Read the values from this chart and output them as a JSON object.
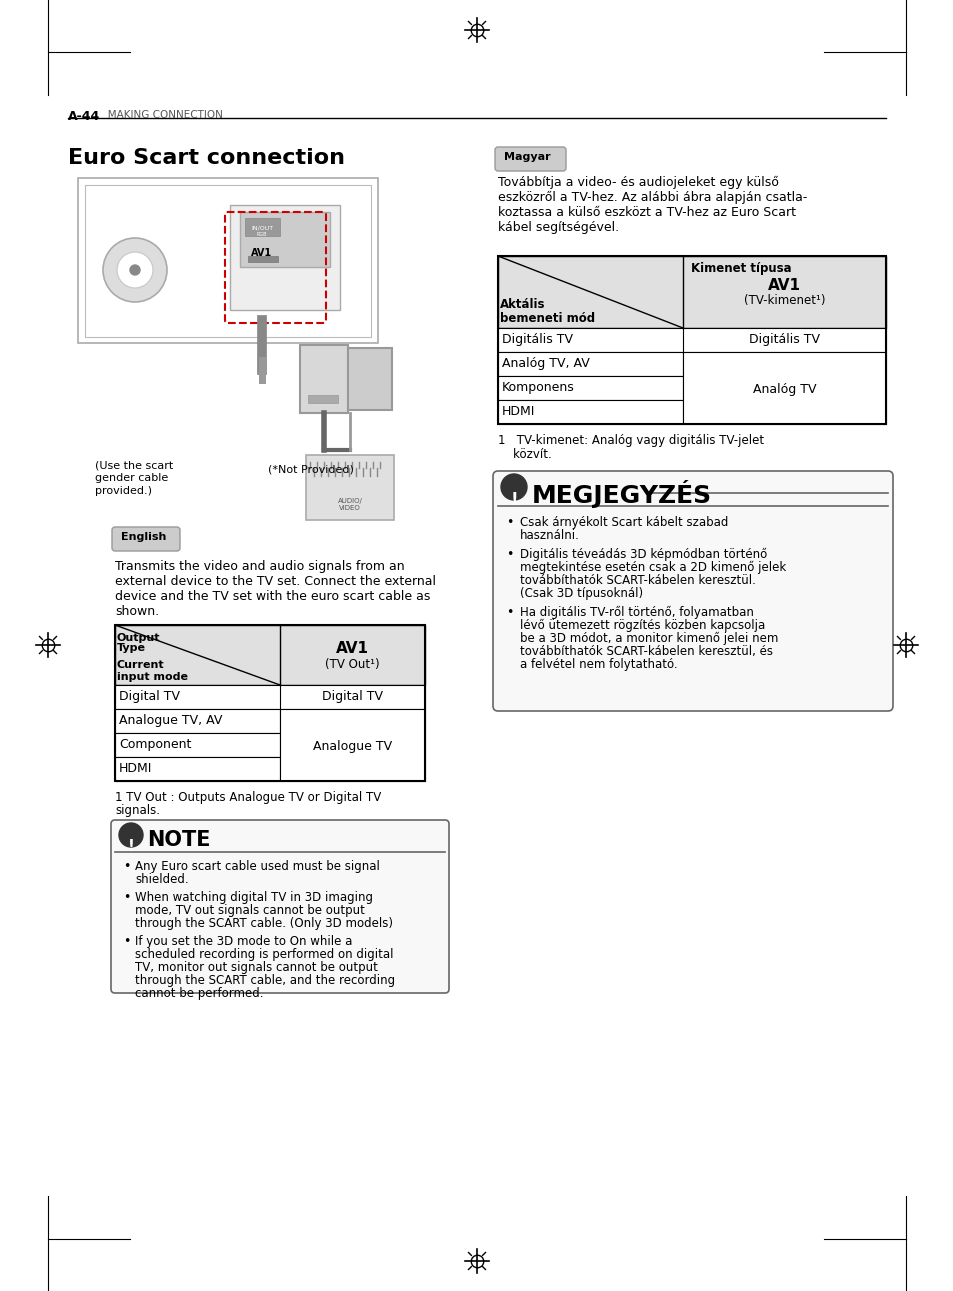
{
  "page_header_num": "A-44",
  "page_header_text": "MAKING CONNECTION",
  "title": "Euro Scart connection",
  "lang_badge_left": "English",
  "lang_badge_right": "Magyar",
  "en_para_lines": [
    "Transmits the video and audio signals from an",
    "external device to the TV set. Connect the external",
    "device and the TV set with the euro scart cable as",
    "shown."
  ],
  "table_en_rows": [
    [
      "Digital TV",
      "Digital TV"
    ],
    [
      "Analogue TV, AV",
      ""
    ],
    [
      "Component",
      "Analogue TV"
    ],
    [
      "HDMI",
      ""
    ]
  ],
  "footnote_en": "1 TV Out : Outputs Analogue TV or Digital TV\nsignals.",
  "note_title_en": "NOTE",
  "note_bullets_en_lines": [
    [
      "Any Euro scart cable used must be signal",
      "shielded."
    ],
    [
      "When watching digital TV in 3D imaging",
      "mode, TV out signals cannot be output",
      "through the SCART cable. (Only 3D models)"
    ],
    [
      "If you set the 3D mode to On while a",
      "scheduled recording is performed on digital",
      "TV, monitor out signals cannot be output",
      "through the SCART cable, and the recording",
      "cannot be performed."
    ]
  ],
  "hu_para_lines": [
    "Továbbítja a video- és audiojeleket egy külső",
    "eszközről a TV-hez. Az alábbi ábra alapján csatla-",
    "koztassa a külső eszközt a TV-hez az Euro Scart",
    "kábel segítségével."
  ],
  "table_hu_rows": [
    [
      "Digitális TV",
      "Digitális TV"
    ],
    [
      "Analóg TV, AV",
      ""
    ],
    [
      "Komponens",
      "Analóg TV"
    ],
    [
      "HDMI",
      ""
    ]
  ],
  "footnote_hu_lines": [
    "1   TV-kimenet: Analóg vagy digitális TV-jelet",
    "    közvít."
  ],
  "note_title_hu": "MEGJEGYZÉS",
  "note_bullets_hu_lines": [
    [
      "Csak árnyékolt Scart kábelt szabad",
      "használni."
    ],
    [
      "Digitális téveádás 3D képmódban történő",
      "megtekintése esetén csak a 2D kimenő jelek",
      "továbbíthatók SCART-kábelen keresztül.",
      "(Csak 3D típusoknál)"
    ],
    [
      "Ha digitális TV-ről történő, folyamatban",
      "lévő ütemezett rögzítés közben kapcsolja",
      "be a 3D módot, a monitor kimenő jelei nem",
      "továbbíthatók SCART-kábelen keresztül, és",
      "a felvétel nem folytatható."
    ]
  ],
  "image_caption_left": [
    "(Use the scart",
    "gender cable",
    "provided.)"
  ],
  "image_caption_right": "(*Not Provided)",
  "bg_color": "#ffffff",
  "badge_bg": "#cccccc",
  "table_header_bg": "#e0e0e0",
  "note_border_color": "#666666",
  "note_bg": "#f8f8f8"
}
